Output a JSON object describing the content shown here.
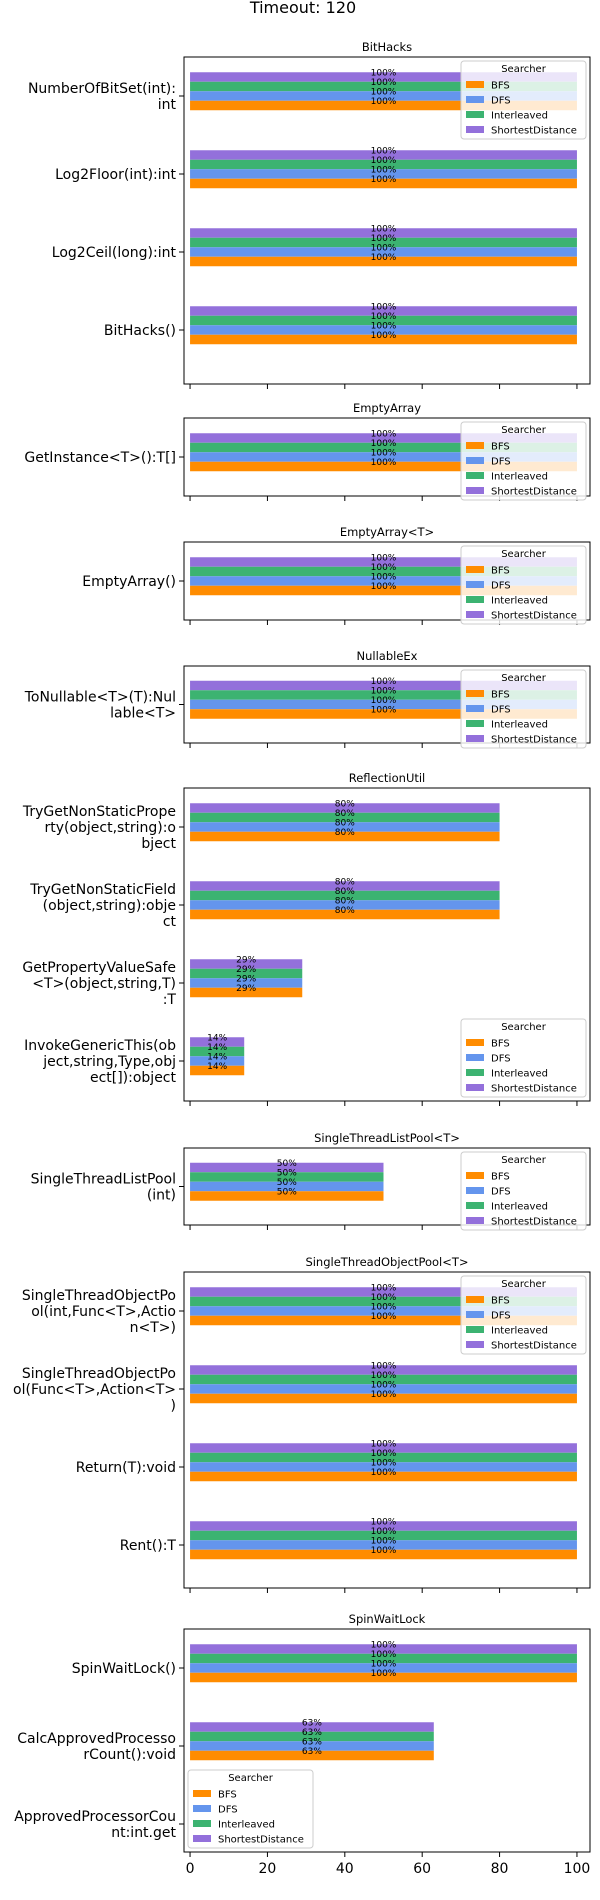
{
  "title": "Timeout: 120",
  "colors": {
    "BFS": "#ff8c00",
    "DFS": "#6495ed",
    "Interleaved": "#3cb371",
    "ShortestDistance": "#9370db"
  },
  "chart_data": {
    "type": "bar",
    "orientation": "horizontal",
    "title": "Timeout: 120",
    "xlim": [
      0,
      105
    ],
    "xticks": [
      0,
      20,
      40,
      60,
      80,
      100
    ],
    "legend_title": "Searcher",
    "series_names": [
      "BFS",
      "DFS",
      "Interleaved",
      "ShortestDistance"
    ],
    "panels": [
      {
        "title": "BitHacks",
        "legend": "upper-right",
        "categories": [
          {
            "label": [
              "NumberOfBitSet(int):",
              "int"
            ],
            "values": [
              100,
              100,
              100,
              100
            ],
            "value_labels": [
              "100%",
              "100%",
              "100%",
              "100%"
            ]
          },
          {
            "label": [
              "Log2Floor(int):int"
            ],
            "values": [
              100,
              100,
              100,
              100
            ],
            "value_labels": [
              "100%",
              "100%",
              "100%",
              "100%"
            ]
          },
          {
            "label": [
              "Log2Ceil(long):int"
            ],
            "values": [
              100,
              100,
              100,
              100
            ],
            "value_labels": [
              "100%",
              "100%",
              "100%",
              "100%"
            ]
          },
          {
            "label": [
              "BitHacks()"
            ],
            "values": [
              100,
              100,
              100,
              100
            ],
            "value_labels": [
              "100%",
              "100%",
              "100%",
              "100%"
            ]
          }
        ]
      },
      {
        "title": "EmptyArray",
        "legend": "upper-right",
        "categories": [
          {
            "label": [
              "GetInstance<T>():T[]"
            ],
            "values": [
              100,
              100,
              100,
              100
            ],
            "value_labels": [
              "100%",
              "100%",
              "100%",
              "100%"
            ]
          }
        ]
      },
      {
        "title": "EmptyArray<T>",
        "legend": "upper-right",
        "categories": [
          {
            "label": [
              "EmptyArray()"
            ],
            "values": [
              100,
              100,
              100,
              100
            ],
            "value_labels": [
              "100%",
              "100%",
              "100%",
              "100%"
            ]
          }
        ]
      },
      {
        "title": "NullableEx",
        "legend": "upper-right",
        "categories": [
          {
            "label": [
              "ToNullable<T>(T):Nul",
              "lable<T>"
            ],
            "values": [
              100,
              100,
              100,
              100
            ],
            "value_labels": [
              "100%",
              "100%",
              "100%",
              "100%"
            ]
          }
        ]
      },
      {
        "title": "ReflectionUtil",
        "legend": "lower-right",
        "categories": [
          {
            "label": [
              "TryGetNonStaticPrope",
              "rty(object,string):o",
              "bject"
            ],
            "values": [
              80,
              80,
              80,
              80
            ],
            "value_labels": [
              "80%",
              "80%",
              "80%",
              "80%"
            ]
          },
          {
            "label": [
              "TryGetNonStaticField",
              "(object,string):obje",
              "ct"
            ],
            "values": [
              80,
              80,
              80,
              80
            ],
            "value_labels": [
              "80%",
              "80%",
              "80%",
              "80%"
            ]
          },
          {
            "label": [
              "GetPropertyValueSafe",
              "<T>(object,string,T)",
              ":T"
            ],
            "values": [
              29,
              29,
              29,
              29
            ],
            "value_labels": [
              "29%",
              "29%",
              "29%",
              "29%"
            ]
          },
          {
            "label": [
              "InvokeGenericThis(ob",
              "ject,string,Type,obj",
              "ect[]):object"
            ],
            "values": [
              14,
              14,
              14,
              14
            ],
            "value_labels": [
              "14%",
              "14%",
              "14%",
              "14%"
            ]
          }
        ]
      },
      {
        "title": "SingleThreadListPool<T>",
        "legend": "upper-right",
        "categories": [
          {
            "label": [
              "SingleThreadListPool",
              "(int)"
            ],
            "values": [
              50,
              50,
              50,
              50
            ],
            "value_labels": [
              "50%",
              "50%",
              "50%",
              "50%"
            ]
          }
        ]
      },
      {
        "title": "SingleThreadObjectPool<T>",
        "legend": "upper-right",
        "categories": [
          {
            "label": [
              "SingleThreadObjectPo",
              "ol(int,Func<T>,Actio",
              "n<T>)"
            ],
            "values": [
              100,
              100,
              100,
              100
            ],
            "value_labels": [
              "100%",
              "100%",
              "100%",
              "100%"
            ]
          },
          {
            "label": [
              "SingleThreadObjectPo",
              "ol(Func<T>,Action<T>",
              ")"
            ],
            "values": [
              100,
              100,
              100,
              100
            ],
            "value_labels": [
              "100%",
              "100%",
              "100%",
              "100%"
            ]
          },
          {
            "label": [
              "Return(T):void"
            ],
            "values": [
              100,
              100,
              100,
              100
            ],
            "value_labels": [
              "100%",
              "100%",
              "100%",
              "100%"
            ]
          },
          {
            "label": [
              "Rent():T"
            ],
            "values": [
              100,
              100,
              100,
              100
            ],
            "value_labels": [
              "100%",
              "100%",
              "100%",
              "100%"
            ]
          }
        ]
      },
      {
        "title": "SpinWaitLock",
        "legend": "lower-left",
        "categories": [
          {
            "label": [
              "SpinWaitLock()"
            ],
            "values": [
              100,
              100,
              100,
              100
            ],
            "value_labels": [
              "100%",
              "100%",
              "100%",
              "100%"
            ]
          },
          {
            "label": [
              "CalcApprovedProcesso",
              "rCount():void"
            ],
            "values": [
              63,
              63,
              63,
              63
            ],
            "value_labels": [
              "63%",
              "63%",
              "63%",
              "63%"
            ]
          },
          {
            "label": [
              "ApprovedProcessorCou",
              "nt:int.get"
            ],
            "values": [
              0,
              0,
              0,
              0
            ],
            "value_labels": [
              "",
              "",
              "",
              ""
            ]
          }
        ]
      }
    ]
  }
}
